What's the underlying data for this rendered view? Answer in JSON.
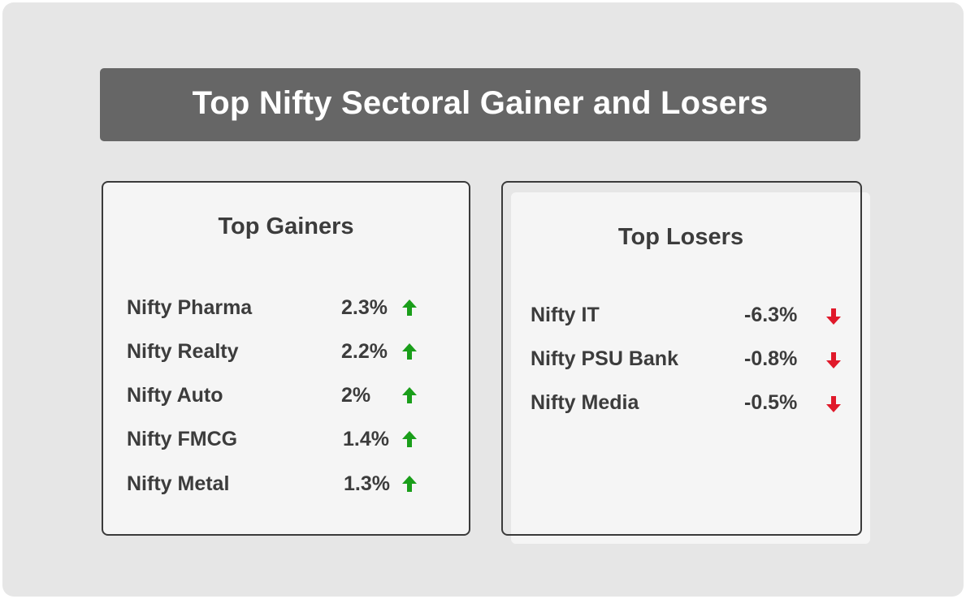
{
  "title": "Top Nifty Sectoral Gainer and Losers",
  "gainers": {
    "heading": "Top Gainers",
    "items": [
      {
        "name": "Nifty Pharma",
        "value": "2.3%"
      },
      {
        "name": "Nifty Realty",
        "value": "2.2%"
      },
      {
        "name": "Nifty Auto",
        "value": "2%"
      },
      {
        "name": "Nifty FMCG",
        "value": "1.4%"
      },
      {
        "name": "Nifty Metal",
        "value": "1.3%"
      }
    ],
    "arrow_icon": "arrow-up-icon",
    "arrow_color": "#1a9e1a"
  },
  "losers": {
    "heading": "Top Losers",
    "items": [
      {
        "name": "Nifty IT",
        "value": "-6.3%"
      },
      {
        "name": "Nifty PSU Bank",
        "value": "-0.8%"
      },
      {
        "name": "Nifty Media",
        "value": "-0.5%"
      }
    ],
    "arrow_icon": "arrow-down-icon",
    "arrow_color": "#e0192a"
  },
  "colors": {
    "background": "#e6e6e6",
    "banner": "#666666",
    "card": "#f5f5f5",
    "text": "#3c3c3c"
  }
}
